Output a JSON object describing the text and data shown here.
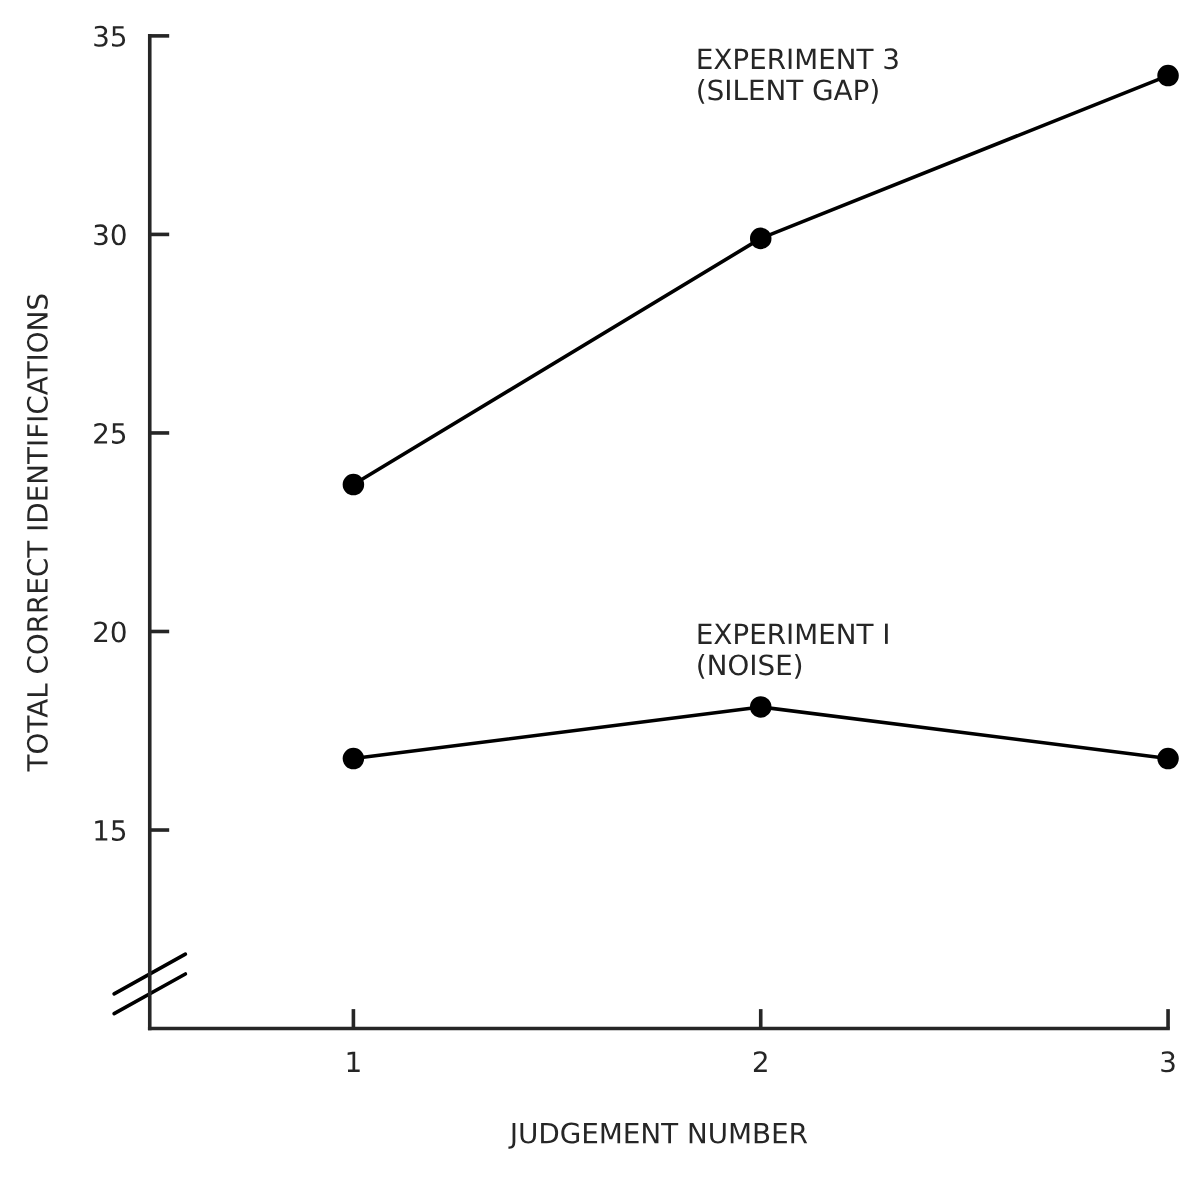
{
  "chart_data": {
    "type": "line",
    "xlabel": "JUDGEMENT NUMBER",
    "ylabel": "TOTAL CORRECT IDENTIFICATIONS",
    "x": [
      1,
      2,
      3
    ],
    "series": [
      {
        "name": "EXPERIMENT 3\n(SILENT GAP)",
        "color": "#000000",
        "values": [
          23.7,
          29.9,
          34.0
        ]
      },
      {
        "name": "EXPERIMENT I\n(NOISE)",
        "color": "#000000",
        "values": [
          16.8,
          18.1,
          16.8
        ]
      }
    ],
    "xlim": [
      0.5,
      3
    ],
    "ylim": [
      10,
      35
    ],
    "xticks": [
      1,
      2,
      3
    ],
    "yticks": [
      15,
      20,
      25,
      30,
      35
    ],
    "grid": false,
    "legend": false,
    "marker": "circle",
    "line_style": "solid"
  }
}
